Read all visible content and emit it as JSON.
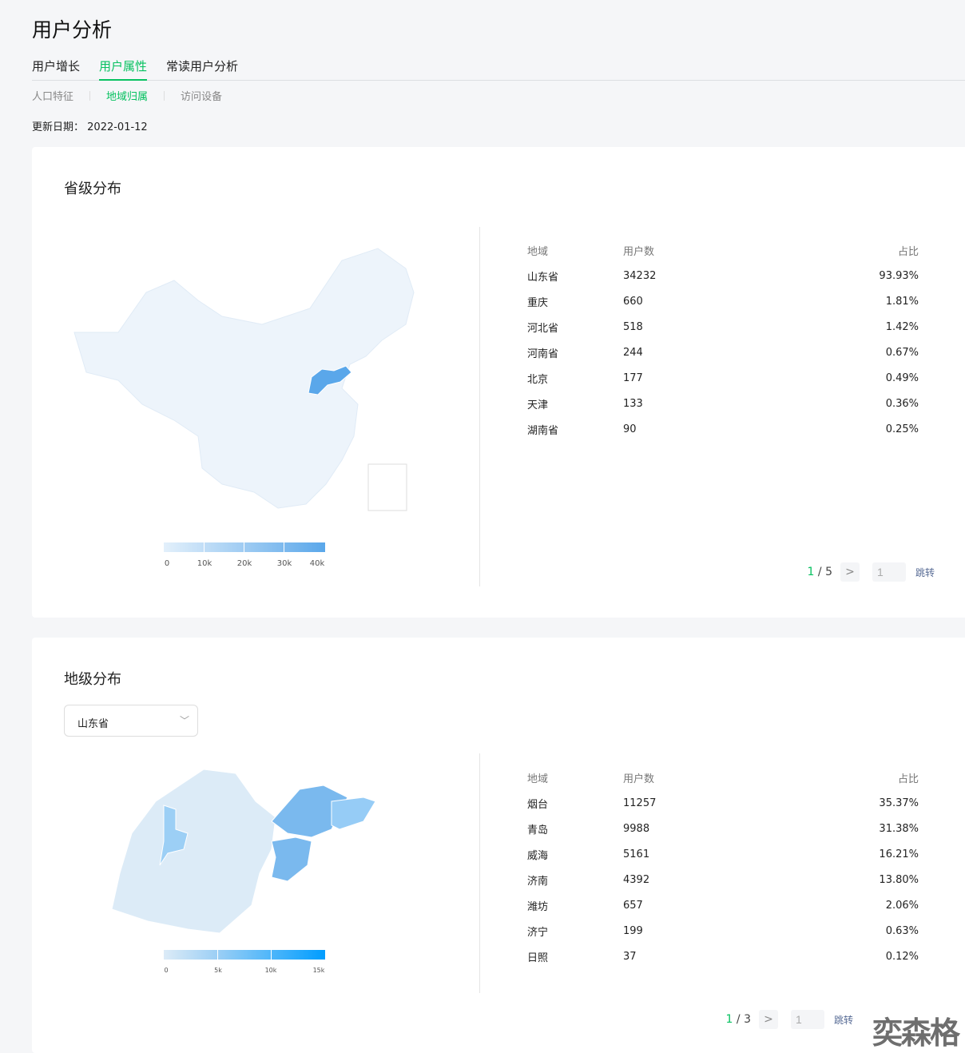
{
  "header": {
    "title": "用户分析",
    "tabs": [
      "用户增长",
      "用户属性",
      "常读用户分析"
    ],
    "active_tab": 1,
    "subtabs": [
      "人口特征",
      "地域归属",
      "访问设备"
    ],
    "active_subtab": 1,
    "update_label": "更新日期：",
    "update_date": "2022-01-12"
  },
  "colors": {
    "accent": "#07c160",
    "map_low": "#e8f2fb",
    "map_high": "#1a9bff"
  },
  "watermark": "奕森格",
  "province": {
    "title": "省级分布",
    "legend": [
      "0",
      "10k",
      "20k",
      "30k",
      "40k"
    ],
    "columns": [
      "地域",
      "用户数",
      "占比"
    ],
    "rows": [
      [
        "山东省",
        "34232",
        "93.93%"
      ],
      [
        "重庆",
        "660",
        "1.81%"
      ],
      [
        "河北省",
        "518",
        "1.42%"
      ],
      [
        "河南省",
        "244",
        "0.67%"
      ],
      [
        "北京",
        "177",
        "0.49%"
      ],
      [
        "天津",
        "133",
        "0.36%"
      ],
      [
        "湖南省",
        "90",
        "0.25%"
      ]
    ],
    "pager": {
      "current": "1",
      "total": "5",
      "input": "1",
      "jump": "跳转"
    }
  },
  "city": {
    "title": "地级分布",
    "select": "山东省",
    "legend": [
      "0",
      "5k",
      "10k",
      "15k"
    ],
    "columns": [
      "地域",
      "用户数",
      "占比"
    ],
    "rows": [
      [
        "烟台",
        "11257",
        "35.37%"
      ],
      [
        "青岛",
        "9988",
        "31.38%"
      ],
      [
        "威海",
        "5161",
        "16.21%"
      ],
      [
        "济南",
        "4392",
        "13.80%"
      ],
      [
        "潍坊",
        "657",
        "2.06%"
      ],
      [
        "济宁",
        "199",
        "0.63%"
      ],
      [
        "日照",
        "37",
        "0.12%"
      ]
    ],
    "pager": {
      "current": "1",
      "total": "3",
      "input": "1",
      "jump": "跳转"
    }
  }
}
